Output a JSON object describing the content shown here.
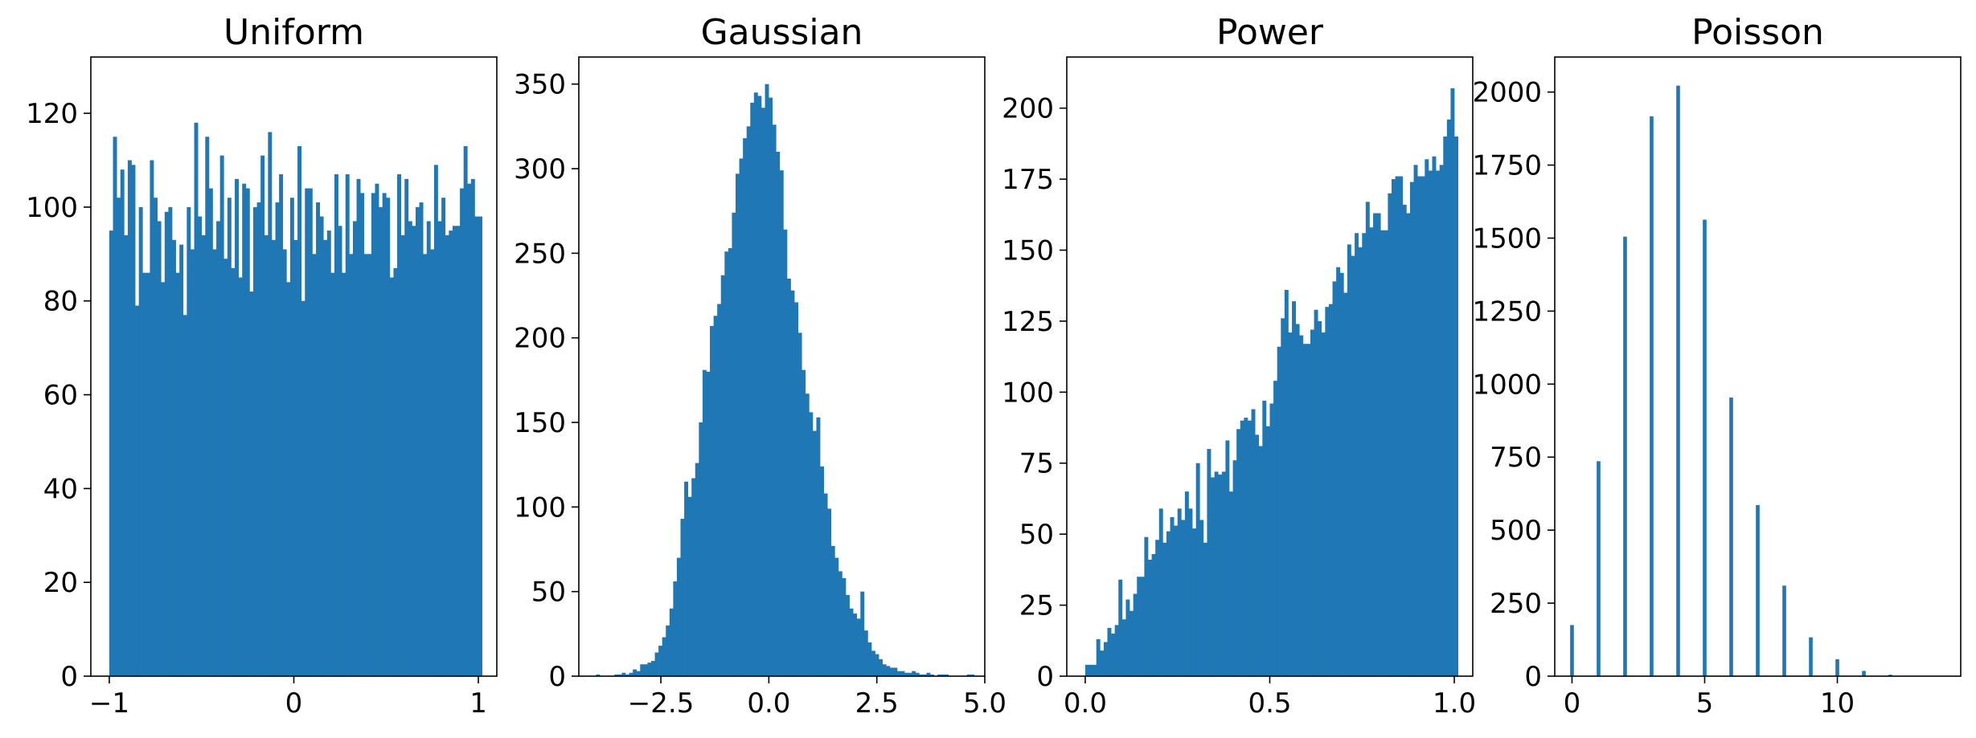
{
  "figure": {
    "background": "#ffffff"
  },
  "chart_data": [
    {
      "type": "bar",
      "title": "Uniform",
      "xlabel": "",
      "ylabel": "",
      "xlim": [
        -1.1,
        1.1
      ],
      "ylim": [
        0,
        132
      ],
      "xticks": [
        -1,
        0,
        1
      ],
      "xtick_labels": [
        "−1",
        "0",
        "1"
      ],
      "yticks": [
        0,
        20,
        40,
        60,
        80,
        100,
        120
      ],
      "ytick_labels": [
        "0",
        "20",
        "40",
        "60",
        "80",
        "100",
        "120"
      ],
      "grid": false,
      "legend": "none",
      "color": "#1f77b4",
      "x_start": -1.0,
      "bin_width": 0.02,
      "values": [
        95,
        115,
        102,
        108,
        94,
        110,
        109,
        79,
        100,
        86,
        86,
        110,
        102,
        97,
        84,
        99,
        100,
        93,
        86,
        92,
        77,
        100,
        91,
        118,
        98,
        94,
        115,
        104,
        91,
        97,
        111,
        89,
        102,
        87,
        106,
        85,
        105,
        104,
        82,
        100,
        101,
        111,
        94,
        116,
        93,
        101,
        107,
        91,
        84,
        102,
        93,
        113,
        80,
        104,
        104,
        90,
        101,
        98,
        93,
        95,
        86,
        107,
        96,
        86,
        107,
        90,
        97,
        106,
        103,
        90,
        90,
        103,
        105,
        100,
        103,
        102,
        85,
        87,
        107,
        94,
        106,
        97,
        96,
        100,
        101,
        90,
        97,
        91,
        109,
        97,
        102,
        94,
        95,
        96,
        96,
        104,
        113,
        105,
        106,
        98,
        98
      ]
    },
    {
      "type": "bar",
      "title": "Gaussian",
      "xlabel": "",
      "ylabel": "",
      "xlim": [
        -4.4,
        5.0
      ],
      "ylim": [
        0,
        366
      ],
      "xticks": [
        -2.5,
        0.0,
        2.5,
        5.0
      ],
      "xtick_labels": [
        "−2.5",
        "0.0",
        "2.5",
        "5.0"
      ],
      "yticks": [
        0,
        50,
        100,
        150,
        200,
        250,
        300,
        350
      ],
      "ytick_labels": [
        "0",
        "50",
        "100",
        "150",
        "200",
        "250",
        "300",
        "350"
      ],
      "grid": false,
      "legend": "none",
      "color": "#1f77b4",
      "x_start": -4.0,
      "bin_width": 0.085,
      "values": [
        1,
        0,
        0,
        0,
        0,
        1,
        1,
        2,
        1,
        2,
        4,
        3,
        7,
        7,
        8,
        9,
        14,
        18,
        23,
        30,
        40,
        56,
        70,
        93,
        115,
        106,
        117,
        126,
        150,
        181,
        180,
        207,
        213,
        220,
        237,
        251,
        253,
        274,
        297,
        306,
        318,
        325,
        339,
        345,
        343,
        336,
        350,
        342,
        326,
        310,
        299,
        264,
        235,
        228,
        221,
        203,
        181,
        167,
        156,
        145,
        153,
        124,
        108,
        99,
        77,
        70,
        62,
        58,
        48,
        40,
        37,
        34,
        50,
        27,
        20,
        15,
        13,
        10,
        7,
        6,
        5,
        5,
        3,
        3,
        2,
        2,
        3,
        2,
        1,
        1,
        2,
        1,
        0,
        1,
        1,
        1,
        0,
        0,
        0,
        0,
        0,
        1,
        1,
        0,
        0,
        0
      ]
    },
    {
      "type": "bar",
      "title": "Power",
      "xlabel": "",
      "ylabel": "",
      "xlim": [
        -0.05,
        1.05
      ],
      "ylim": [
        0,
        218
      ],
      "xticks": [
        0.0,
        0.5,
        1.0
      ],
      "xtick_labels": [
        "0.0",
        "0.5",
        "1.0"
      ],
      "yticks": [
        0,
        25,
        50,
        75,
        100,
        125,
        150,
        175,
        200
      ],
      "ytick_labels": [
        "0",
        "25",
        "50",
        "75",
        "100",
        "125",
        "150",
        "175",
        "200"
      ],
      "grid": false,
      "legend": "none",
      "color": "#1f77b4",
      "x_start": 0.0,
      "bin_width": 0.01,
      "values": [
        4,
        4,
        4,
        13,
        9,
        12,
        17,
        15,
        18,
        34,
        20,
        27,
        23,
        29,
        35,
        35,
        49,
        41,
        43,
        48,
        59,
        47,
        51,
        56,
        53,
        59,
        55,
        65,
        59,
        52,
        75,
        55,
        47,
        80,
        70,
        72,
        71,
        72,
        83,
        65,
        76,
        87,
        90,
        91,
        90,
        94,
        85,
        81,
        97,
        88,
        96,
        104,
        116,
        126,
        136,
        121,
        132,
        124,
        120,
        117,
        117,
        122,
        129,
        125,
        121,
        130,
        131,
        139,
        144,
        142,
        135,
        152,
        148,
        156,
        151,
        156,
        167,
        158,
        163,
        163,
        157,
        157,
        170,
        175,
        176,
        176,
        166,
        163,
        174,
        180,
        176,
        176,
        182,
        178,
        183,
        178,
        180,
        190,
        196,
        207,
        190
      ]
    },
    {
      "type": "bar",
      "title": "Poisson",
      "xlabel": "",
      "ylabel": "",
      "xlim": [
        -0.65,
        14.65
      ],
      "ylim": [
        0,
        2120
      ],
      "xticks": [
        0,
        5,
        10
      ],
      "xtick_labels": [
        "0",
        "5",
        "10"
      ],
      "yticks": [
        0,
        250,
        500,
        750,
        1000,
        1250,
        1500,
        1750,
        2000
      ],
      "ytick_labels": [
        "0",
        "250",
        "500",
        "750",
        "1000",
        "1250",
        "1500",
        "1750",
        "2000"
      ],
      "grid": false,
      "legend": "none",
      "color": "#1f77b4",
      "x": [
        0,
        1,
        2,
        3,
        4,
        5,
        6,
        7,
        8,
        9,
        10,
        11,
        12
      ],
      "values": [
        175,
        736,
        1505,
        1917,
        2022,
        1563,
        954,
        586,
        310,
        133,
        58,
        18,
        5
      ],
      "bar_width": 0.14
    }
  ]
}
